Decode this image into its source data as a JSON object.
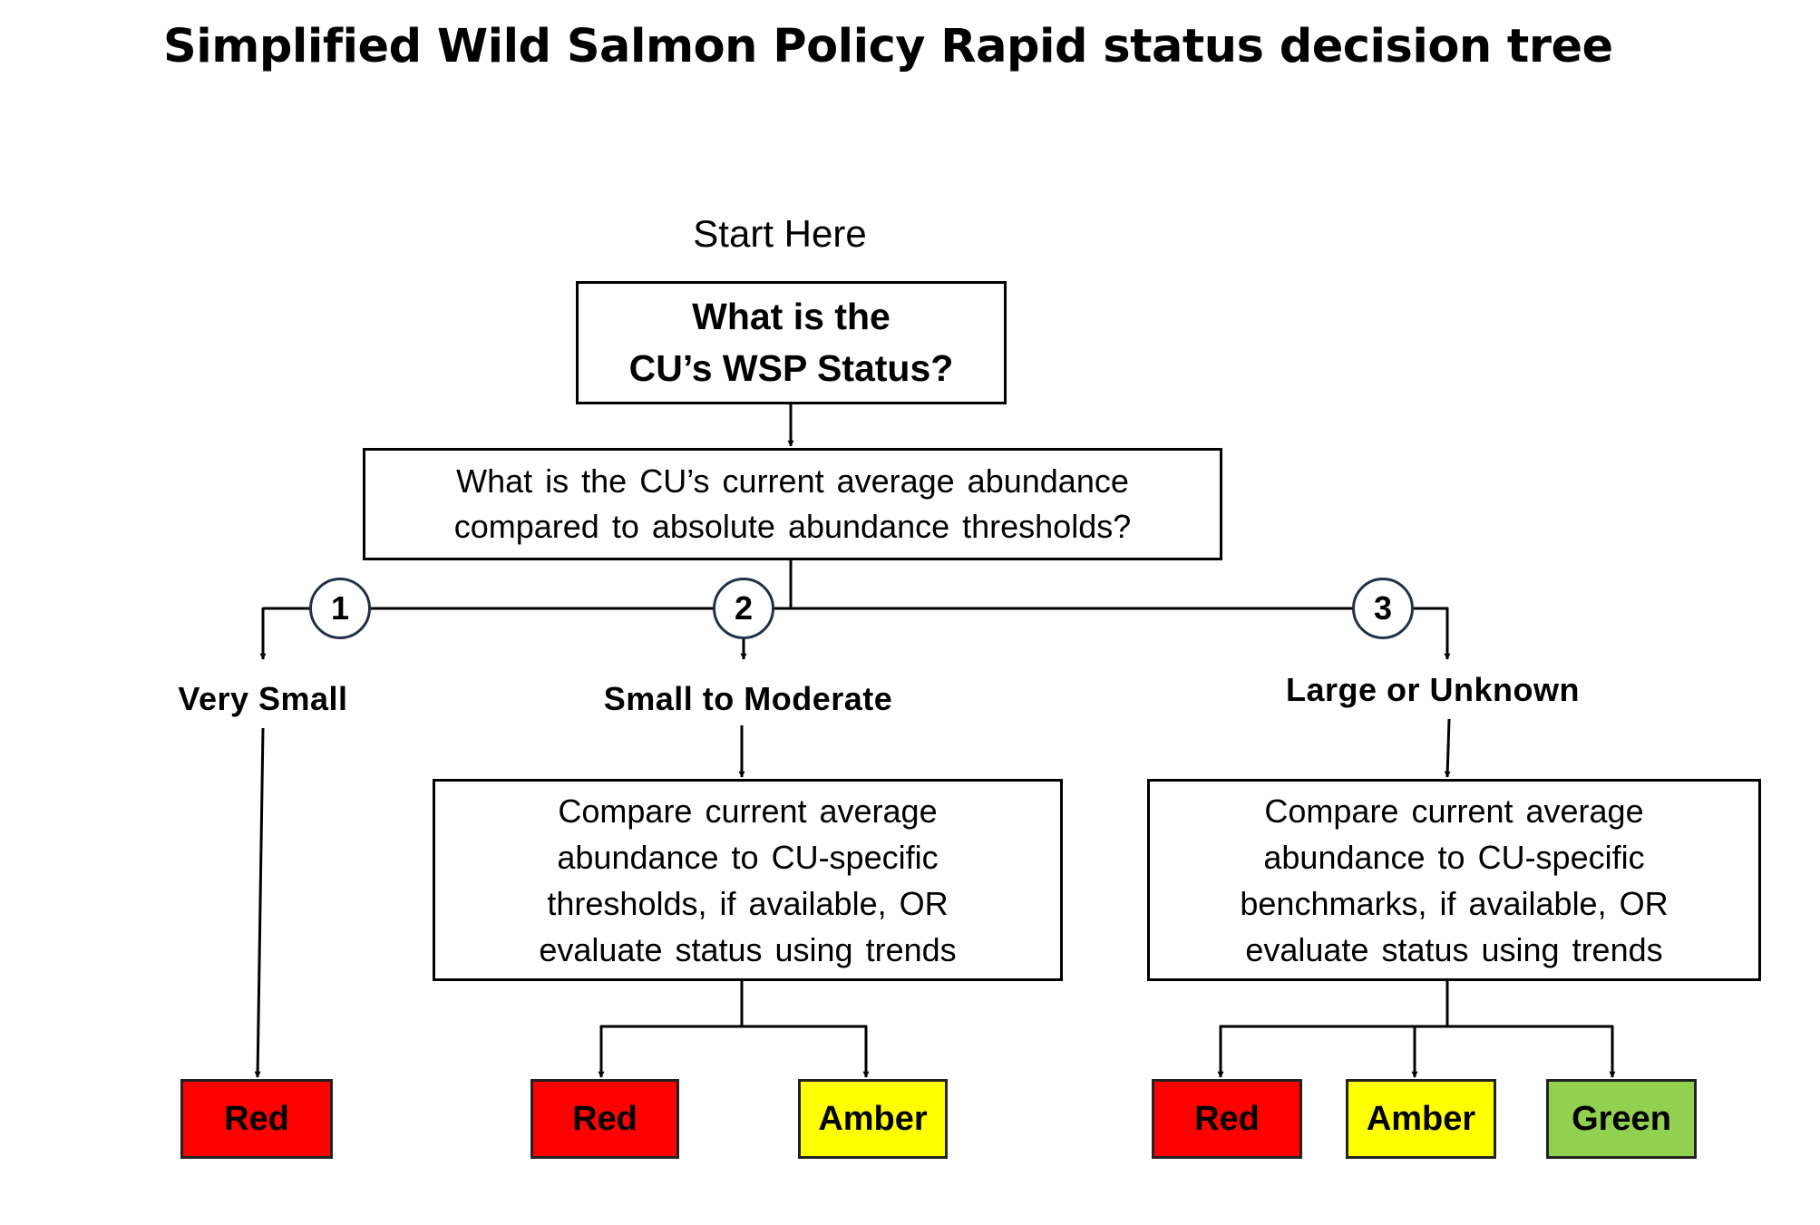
{
  "title": "Simplified Wild Salmon Policy Rapid status decision tree",
  "start_label": "Start Here",
  "question_status": "What is the\nCU’s WSP Status?",
  "question_abundance": "What is the CU’s current average abundance\ncompared to absolute abundance thresholds?",
  "branches": [
    {
      "number": "1",
      "label": "Very Small"
    },
    {
      "number": "2",
      "label": "Small to Moderate"
    },
    {
      "number": "3",
      "label": "Large or Unknown"
    }
  ],
  "compare_thresholds": "Compare current average\nabundance to CU-specific\nthresholds, if available, OR\nevaluate status using trends",
  "compare_benchmarks": "Compare current average\nabundance to CU-specific\nbenchmarks, if available, OR\nevaluate status using trends",
  "outcomes": [
    {
      "label": "Red",
      "color": "#ff0000"
    },
    {
      "label": "Red",
      "color": "#ff0000"
    },
    {
      "label": "Amber",
      "color": "#ffff00"
    },
    {
      "label": "Red",
      "color": "#ff0000"
    },
    {
      "label": "Amber",
      "color": "#ffff00"
    },
    {
      "label": "Green",
      "color": "#92d050"
    }
  ]
}
